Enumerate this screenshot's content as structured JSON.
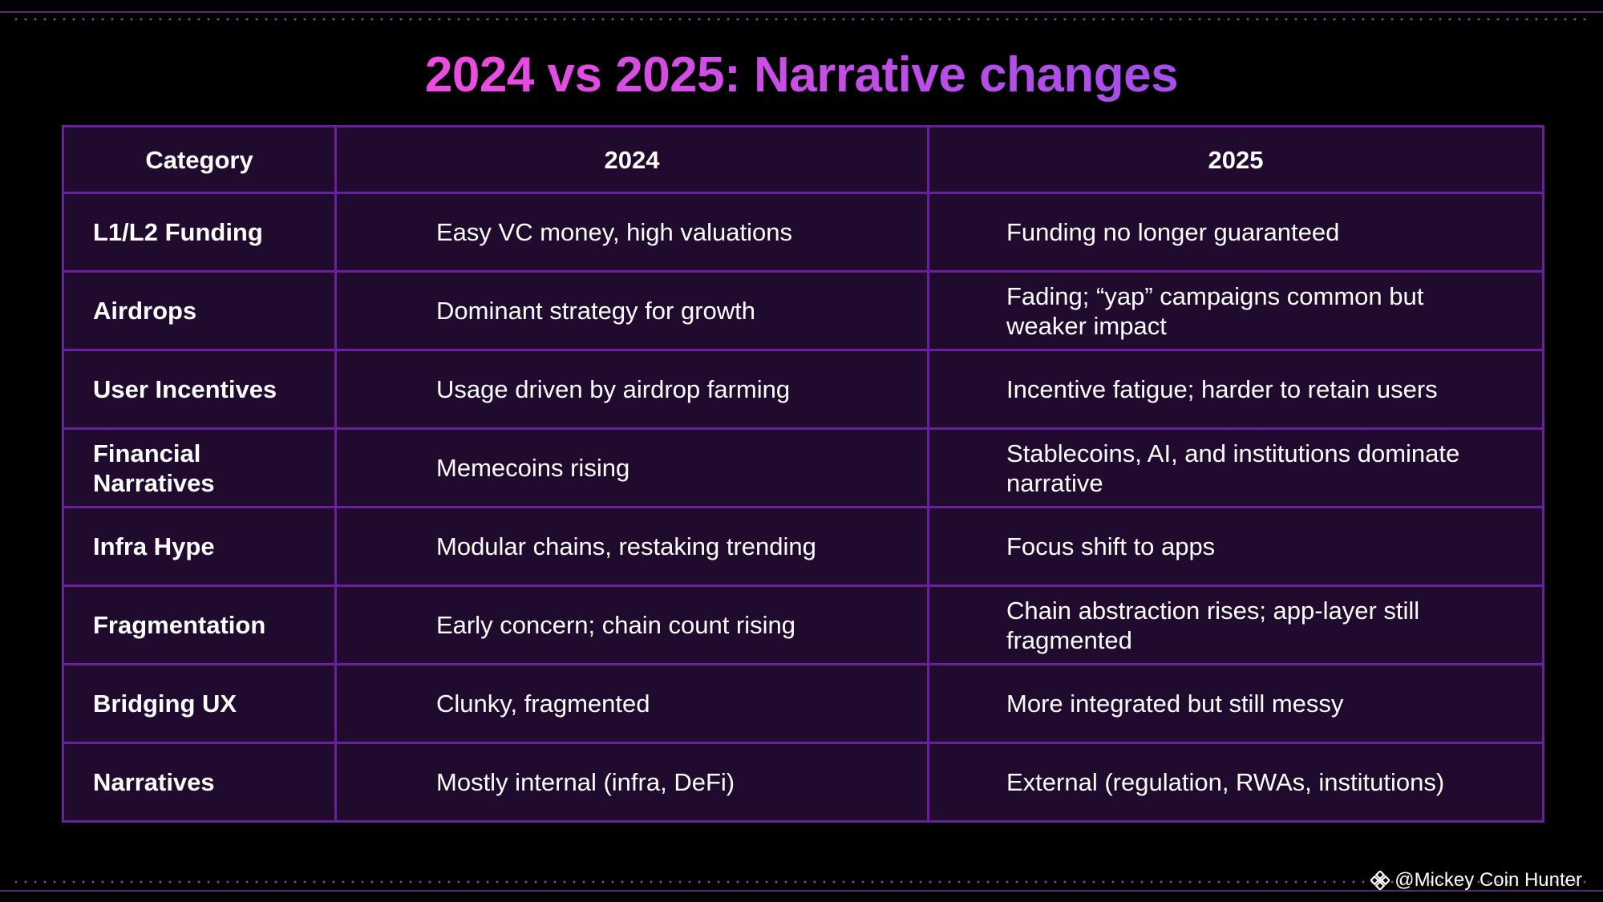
{
  "title": "2024 vs 2025: Narrative changes",
  "table": {
    "headers": [
      "Category",
      "2024",
      "2025"
    ],
    "rows": [
      [
        "L1/L2 Funding",
        "Easy VC money, high valuations",
        "Funding no longer guaranteed"
      ],
      [
        "Airdrops",
        "Dominant strategy for growth",
        "Fading; “yap” campaigns common but weaker impact"
      ],
      [
        "User Incentives",
        "Usage driven by airdrop farming",
        "Incentive fatigue; harder to retain users"
      ],
      [
        "Financial Narratives",
        "Memecoins rising",
        "Stablecoins, AI, and institutions dominate narrative"
      ],
      [
        "Infra Hype",
        "Modular chains, restaking trending",
        "Focus shift to apps"
      ],
      [
        "Fragmentation",
        "Early concern; chain count rising",
        "Chain abstraction rises; app-layer still fragmented"
      ],
      [
        "Bridging UX",
        "Clunky, fragmented",
        "More integrated but still messy"
      ],
      [
        "Narratives",
        "Mostly internal (infra, DeFi)",
        "External (regulation, RWAs, institutions)"
      ]
    ]
  },
  "watermark": {
    "text": "@Mickey Coin Hunter",
    "icon": "binance-logo-icon"
  },
  "colors": {
    "background": "#000000",
    "table_fill": "#200a2e",
    "table_border": "#6a1ea0",
    "title_gradient_start": "#f04be0",
    "title_gradient_end": "#a24fe8"
  }
}
